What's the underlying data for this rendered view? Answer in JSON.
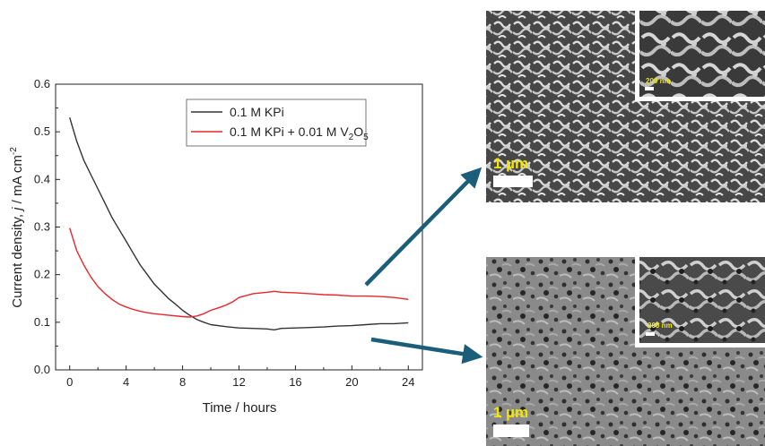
{
  "chart_data": {
    "type": "line",
    "title": "",
    "xlabel": "Time / hours",
    "ylabel_parts": [
      "Current density, ",
      "j",
      " / mA cm",
      "-2"
    ],
    "xlim": [
      -1,
      25
    ],
    "ylim": [
      0.0,
      0.6
    ],
    "xticks": [
      0,
      4,
      8,
      12,
      16,
      20,
      24
    ],
    "yticks": [
      0.0,
      0.1,
      0.2,
      0.3,
      0.4,
      0.5,
      0.6
    ],
    "ytick_labels": [
      "0.0",
      "0.1",
      "0.2",
      "0.3",
      "0.4",
      "0.5",
      "0.6"
    ],
    "grid": false,
    "legend_position": "top-right",
    "series": [
      {
        "name": "0.1 M KPi",
        "color": "#333333",
        "x": [
          0,
          0.5,
          1,
          1.5,
          2,
          2.5,
          3,
          3.5,
          4,
          4.5,
          5,
          5.5,
          6,
          6.5,
          7,
          7.5,
          8,
          8.5,
          9,
          9.5,
          10,
          11,
          12,
          13,
          14,
          14.5,
          15,
          16,
          17,
          18,
          19,
          20,
          21,
          22,
          23,
          24
        ],
        "y": [
          0.53,
          0.48,
          0.44,
          0.41,
          0.38,
          0.35,
          0.32,
          0.295,
          0.27,
          0.245,
          0.22,
          0.2,
          0.18,
          0.165,
          0.15,
          0.138,
          0.125,
          0.115,
          0.106,
          0.1,
          0.095,
          0.091,
          0.088,
          0.087,
          0.086,
          0.084,
          0.087,
          0.088,
          0.089,
          0.09,
          0.092,
          0.093,
          0.095,
          0.097,
          0.097,
          0.099
        ]
      },
      {
        "name_parts": [
          "0.1 M KPi + 0.01 M V",
          "2",
          "O",
          "5"
        ],
        "color": "#e8262b",
        "x": [
          0,
          0.5,
          1,
          1.5,
          2,
          2.5,
          3,
          3.5,
          4,
          4.5,
          5,
          5.5,
          6,
          7,
          8,
          8.5,
          9,
          9.5,
          10,
          10.5,
          11,
          11.5,
          12,
          13,
          14,
          14.5,
          15,
          16,
          17,
          18,
          19,
          20,
          21,
          22,
          23,
          24
        ],
        "y": [
          0.298,
          0.25,
          0.22,
          0.195,
          0.175,
          0.16,
          0.148,
          0.138,
          0.132,
          0.127,
          0.123,
          0.12,
          0.118,
          0.115,
          0.112,
          0.111,
          0.113,
          0.118,
          0.125,
          0.13,
          0.135,
          0.142,
          0.152,
          0.16,
          0.163,
          0.165,
          0.163,
          0.162,
          0.16,
          0.158,
          0.157,
          0.155,
          0.155,
          0.154,
          0.152,
          0.148
        ]
      }
    ]
  },
  "images": {
    "top": {
      "scale_label": "1 µm",
      "inset_scale_label": "200 nm"
    },
    "bottom": {
      "scale_label": "1 µm",
      "inset_scale_label": "200 nm"
    }
  },
  "colors": {
    "arrow": "#1b5e7a"
  }
}
